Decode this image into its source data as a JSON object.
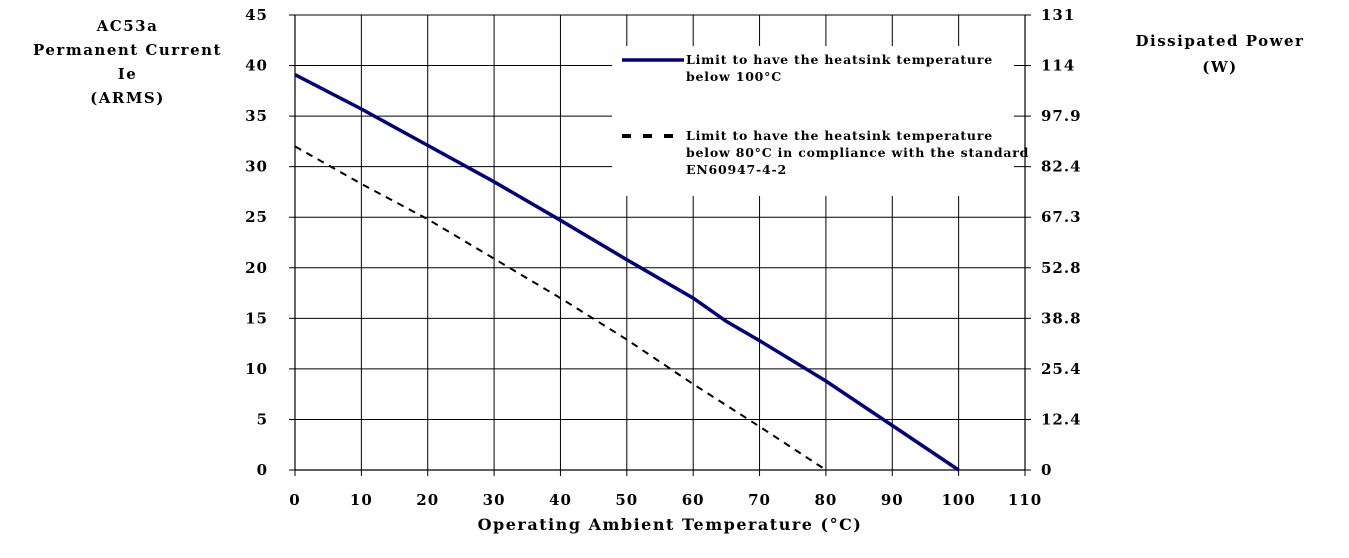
{
  "chart_data": {
    "type": "line",
    "ylabel_left": [
      "AC53a",
      "Permanent Current",
      "Ie",
      "(ARMS)"
    ],
    "ylabel_right": [
      "Dissipated Power",
      "(W)"
    ],
    "xlabel": "Operating Ambient Temperature (°C)",
    "xlim": [
      0,
      110
    ],
    "ylim": [
      0,
      45
    ],
    "x_ticks": [
      0,
      10,
      20,
      30,
      40,
      50,
      60,
      70,
      80,
      90,
      100,
      110
    ],
    "y_ticks_left": [
      0,
      5,
      10,
      15,
      20,
      25,
      30,
      35,
      40,
      45
    ],
    "y_ticks_right": [
      "0",
      "12.4",
      "25.4",
      "38.8",
      "52.8",
      "67.3",
      "82.4",
      "97.9",
      "114",
      "131"
    ],
    "grid": "horizontal and vertical",
    "legend_position": "top-right",
    "series": [
      {
        "name_lines": [
          "Limit to have the heatsink temperature",
          "below 100°C"
        ],
        "style": "solid",
        "color": "#000080",
        "points": [
          [
            0,
            39.1
          ],
          [
            10,
            35.7
          ],
          [
            20,
            32.1
          ],
          [
            30,
            28.5
          ],
          [
            40,
            24.7
          ],
          [
            50,
            20.8
          ],
          [
            60,
            17.0
          ],
          [
            65,
            14.7
          ],
          [
            70,
            12.8
          ],
          [
            80,
            8.8
          ],
          [
            90,
            4.4
          ],
          [
            100,
            0
          ]
        ]
      },
      {
        "name_lines": [
          "Limit to have the heatsink temperature",
          "below 80°C in compliance with the standard",
          "EN60947-4-2"
        ],
        "style": "dashed",
        "color": "#000000",
        "points": [
          [
            0,
            32.0
          ],
          [
            10,
            28.3
          ],
          [
            20,
            24.8
          ],
          [
            30,
            20.9
          ],
          [
            40,
            17.0
          ],
          [
            50,
            12.9
          ],
          [
            60,
            8.5
          ],
          [
            70,
            4.3
          ],
          [
            80,
            0
          ]
        ]
      }
    ]
  }
}
